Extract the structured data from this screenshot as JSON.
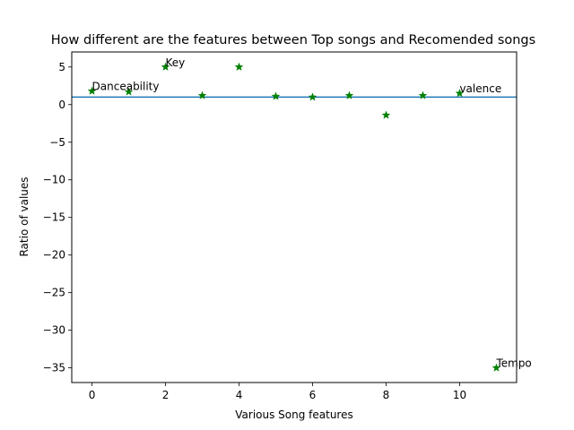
{
  "chart_data": {
    "type": "scatter",
    "title": "How different are the features between Top songs and Recomended songs",
    "xlabel": "Various Song features",
    "ylabel": "Ratio of values",
    "xlim": [
      -0.55,
      11.55
    ],
    "ylim": [
      -36.95,
      7.0
    ],
    "xticks": [
      0,
      2,
      4,
      6,
      8,
      10
    ],
    "yticks": [
      5,
      0,
      -5,
      -10,
      -15,
      -20,
      -25,
      -30,
      -35
    ],
    "grid": false,
    "marker": "star",
    "marker_color": "#008000",
    "reference_line": {
      "y": 1,
      "color": "#1f77b4"
    },
    "points": [
      {
        "x": 0,
        "y": 1.8
      },
      {
        "x": 1,
        "y": 1.7
      },
      {
        "x": 2,
        "y": 5.0
      },
      {
        "x": 3,
        "y": 1.2
      },
      {
        "x": 4,
        "y": 5.0
      },
      {
        "x": 5,
        "y": 1.1
      },
      {
        "x": 6,
        "y": 1.0
      },
      {
        "x": 7,
        "y": 1.2
      },
      {
        "x": 8,
        "y": -1.4
      },
      {
        "x": 9,
        "y": 1.2
      },
      {
        "x": 10,
        "y": 1.5
      },
      {
        "x": 11,
        "y": -35.0
      }
    ],
    "annotations": [
      {
        "text": "Danceability",
        "x": 0,
        "y": 1.8
      },
      {
        "text": "Key",
        "x": 2,
        "y": 5.0
      },
      {
        "text": "valence",
        "x": 10,
        "y": 1.5
      },
      {
        "text": "Tempo",
        "x": 11,
        "y": -35.0
      }
    ]
  }
}
